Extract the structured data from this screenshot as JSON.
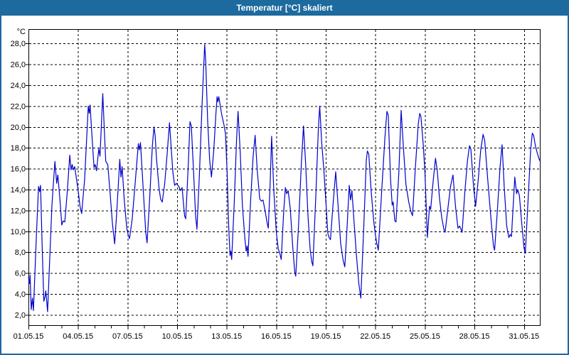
{
  "window": {
    "title": "Temperatur [°C] skaliert",
    "titlebar_color": "#1d6a9e",
    "border_color": "#2066a2",
    "background": "#ffffff"
  },
  "chart_data": {
    "type": "line",
    "title": "Temperatur [°C] skaliert",
    "ylabel": "°C",
    "grid": true,
    "grid_color": "#000000",
    "grid_style": "dashed",
    "line_color": "#0000cc",
    "plot_background": "#ffffff",
    "x_axis": {
      "unit": "date",
      "range_days": [
        1,
        32
      ],
      "major_ticks": [
        {
          "day": 1,
          "label": "01.05.15"
        },
        {
          "day": 4,
          "label": "04.05.15"
        },
        {
          "day": 7,
          "label": "07.05.15"
        },
        {
          "day": 10,
          "label": "10.05.15"
        },
        {
          "day": 13,
          "label": "13.05.15"
        },
        {
          "day": 16,
          "label": "16.05.15"
        },
        {
          "day": 19,
          "label": "19.05.15"
        },
        {
          "day": 22,
          "label": "22.05.15"
        },
        {
          "day": 25,
          "label": "25.05.15"
        },
        {
          "day": 28,
          "label": "28.05.15"
        },
        {
          "day": 31,
          "label": "31.05.15"
        }
      ],
      "minor_tick_every_days": 1
    },
    "y_axis": {
      "range": [
        0.9,
        29.4
      ],
      "ticks": [
        2,
        4,
        6,
        8,
        10,
        12,
        14,
        16,
        18,
        20,
        22,
        24,
        26,
        28
      ],
      "labels": [
        "2,0",
        "4,0",
        "6,0",
        "8,0",
        "10,0",
        "12,0",
        "14,0",
        "16,0",
        "18,0",
        "20,0",
        "22,0",
        "24,0",
        "26,0",
        "28,0"
      ],
      "unit_label": "°C"
    },
    "series": [
      {
        "name": "Temperatur",
        "color": "#0000cc",
        "points": [
          [
            1.0,
            5.6
          ],
          [
            1.06,
            5.0
          ],
          [
            1.1,
            5.8
          ],
          [
            1.17,
            2.5
          ],
          [
            1.24,
            3.6
          ],
          [
            1.3,
            2.4
          ],
          [
            1.38,
            5.5
          ],
          [
            1.48,
            9.5
          ],
          [
            1.61,
            14.3
          ],
          [
            1.68,
            13.8
          ],
          [
            1.73,
            14.4
          ],
          [
            1.83,
            8.5
          ],
          [
            1.93,
            3.3
          ],
          [
            2.0,
            3.7
          ],
          [
            2.05,
            4.3
          ],
          [
            2.16,
            2.3
          ],
          [
            2.28,
            7.0
          ],
          [
            2.42,
            12.5
          ],
          [
            2.6,
            16.7
          ],
          [
            2.71,
            14.6
          ],
          [
            2.78,
            15.4
          ],
          [
            2.9,
            13.2
          ],
          [
            3.02,
            10.6
          ],
          [
            3.1,
            11.0
          ],
          [
            3.2,
            10.9
          ],
          [
            3.35,
            13.8
          ],
          [
            3.5,
            17.3
          ],
          [
            3.58,
            15.9
          ],
          [
            3.65,
            16.4
          ],
          [
            3.72,
            15.9
          ],
          [
            3.8,
            16.2
          ],
          [
            4.0,
            14.0
          ],
          [
            4.12,
            12.4
          ],
          [
            4.22,
            11.7
          ],
          [
            4.4,
            15.0
          ],
          [
            4.62,
            22.0
          ],
          [
            4.68,
            21.3
          ],
          [
            4.73,
            22.1
          ],
          [
            4.87,
            18.5
          ],
          [
            4.97,
            16.1
          ],
          [
            5.04,
            16.4
          ],
          [
            5.12,
            15.8
          ],
          [
            5.26,
            17.9
          ],
          [
            5.33,
            17.2
          ],
          [
            5.5,
            23.2
          ],
          [
            5.6,
            19.5
          ],
          [
            5.68,
            16.7
          ],
          [
            5.8,
            16.4
          ],
          [
            5.95,
            13.5
          ],
          [
            6.08,
            10.8
          ],
          [
            6.22,
            8.8
          ],
          [
            6.35,
            12.0
          ],
          [
            6.53,
            16.9
          ],
          [
            6.6,
            15.2
          ],
          [
            6.67,
            16.2
          ],
          [
            6.8,
            13.0
          ],
          [
            6.95,
            10.3
          ],
          [
            7.05,
            9.6
          ],
          [
            7.12,
            9.3
          ],
          [
            7.28,
            11.2
          ],
          [
            7.48,
            15.0
          ],
          [
            7.65,
            18.4
          ],
          [
            7.71,
            17.8
          ],
          [
            7.78,
            18.5
          ],
          [
            7.95,
            14.0
          ],
          [
            8.1,
            9.9
          ],
          [
            8.18,
            8.9
          ],
          [
            8.35,
            13.5
          ],
          [
            8.5,
            18.2
          ],
          [
            8.6,
            20.0
          ],
          [
            8.67,
            19.2
          ],
          [
            8.75,
            17.0
          ],
          [
            8.9,
            14.2
          ],
          [
            9.0,
            13.1
          ],
          [
            9.1,
            12.8
          ],
          [
            9.25,
            14.6
          ],
          [
            9.4,
            17.5
          ],
          [
            9.54,
            20.4
          ],
          [
            9.65,
            17.8
          ],
          [
            9.74,
            15.7
          ],
          [
            9.85,
            14.4
          ],
          [
            9.95,
            14.6
          ],
          [
            10.1,
            14.3
          ],
          [
            10.2,
            13.9
          ],
          [
            10.3,
            14.2
          ],
          [
            10.45,
            11.5
          ],
          [
            10.52,
            11.2
          ],
          [
            10.68,
            16.5
          ],
          [
            10.78,
            20.5
          ],
          [
            10.86,
            20.1
          ],
          [
            11.0,
            15.5
          ],
          [
            11.12,
            11.5
          ],
          [
            11.2,
            10.2
          ],
          [
            11.35,
            15.5
          ],
          [
            11.5,
            21.8
          ],
          [
            11.6,
            25.5
          ],
          [
            11.67,
            27.9
          ],
          [
            11.73,
            26.3
          ],
          [
            11.85,
            20.5
          ],
          [
            11.97,
            16.8
          ],
          [
            12.08,
            15.2
          ],
          [
            12.22,
            17.8
          ],
          [
            12.35,
            21.3
          ],
          [
            12.42,
            22.9
          ],
          [
            12.47,
            22.4
          ],
          [
            12.52,
            22.9
          ],
          [
            12.7,
            21.2
          ],
          [
            12.85,
            20.1
          ],
          [
            12.93,
            19.3
          ],
          [
            13.03,
            15.5
          ],
          [
            13.12,
            10.5
          ],
          [
            13.2,
            7.7
          ],
          [
            13.25,
            8.1
          ],
          [
            13.3,
            7.3
          ],
          [
            13.45,
            12.5
          ],
          [
            13.6,
            18.8
          ],
          [
            13.69,
            21.5
          ],
          [
            13.82,
            17.5
          ],
          [
            13.95,
            12.5
          ],
          [
            14.1,
            9.3
          ],
          [
            14.18,
            8.1
          ],
          [
            14.24,
            8.6
          ],
          [
            14.29,
            7.6
          ],
          [
            14.45,
            13.0
          ],
          [
            14.6,
            17.2
          ],
          [
            14.72,
            19.2
          ],
          [
            14.85,
            15.8
          ],
          [
            15.0,
            13.1
          ],
          [
            15.1,
            12.9
          ],
          [
            15.2,
            13.0
          ],
          [
            15.32,
            12.0
          ],
          [
            15.45,
            10.8
          ],
          [
            15.52,
            10.3
          ],
          [
            15.63,
            14.5
          ],
          [
            15.72,
            19.1
          ],
          [
            15.85,
            14.0
          ],
          [
            16.0,
            10.0
          ],
          [
            16.12,
            8.3
          ],
          [
            16.2,
            8.0
          ],
          [
            16.3,
            7.3
          ],
          [
            16.45,
            11.8
          ],
          [
            16.55,
            14.2
          ],
          [
            16.63,
            13.6
          ],
          [
            16.72,
            13.9
          ],
          [
            16.85,
            12.2
          ],
          [
            17.0,
            8.5
          ],
          [
            17.12,
            6.1
          ],
          [
            17.18,
            5.7
          ],
          [
            17.35,
            10.5
          ],
          [
            17.52,
            16.5
          ],
          [
            17.65,
            20.1
          ],
          [
            17.78,
            16.5
          ],
          [
            17.92,
            11.5
          ],
          [
            18.05,
            8.3
          ],
          [
            18.15,
            7.1
          ],
          [
            18.22,
            6.7
          ],
          [
            18.4,
            13.5
          ],
          [
            18.55,
            19.8
          ],
          [
            18.63,
            22.0
          ],
          [
            18.75,
            18.5
          ],
          [
            18.88,
            15.9
          ],
          [
            19.02,
            12.5
          ],
          [
            19.12,
            9.8
          ],
          [
            19.2,
            9.4
          ],
          [
            19.28,
            9.2
          ],
          [
            19.45,
            12.8
          ],
          [
            19.6,
            15.7
          ],
          [
            19.75,
            12.3
          ],
          [
            19.9,
            8.8
          ],
          [
            20.05,
            7.2
          ],
          [
            20.15,
            6.6
          ],
          [
            20.3,
            10.8
          ],
          [
            20.42,
            14.4
          ],
          [
            20.5,
            13.0
          ],
          [
            20.58,
            13.9
          ],
          [
            20.7,
            11.2
          ],
          [
            20.85,
            7.8
          ],
          [
            21.0,
            5.0
          ],
          [
            21.12,
            3.6
          ],
          [
            21.3,
            10.5
          ],
          [
            21.45,
            16.8
          ],
          [
            21.52,
            17.7
          ],
          [
            21.6,
            17.4
          ],
          [
            21.75,
            13.8
          ],
          [
            21.9,
            11.0
          ],
          [
            22.0,
            9.7
          ],
          [
            22.08,
            8.9
          ],
          [
            22.18,
            8.2
          ],
          [
            22.38,
            13.8
          ],
          [
            22.58,
            19.0
          ],
          [
            22.7,
            21.5
          ],
          [
            22.78,
            21.1
          ],
          [
            22.92,
            15.0
          ],
          [
            23.02,
            12.5
          ],
          [
            23.08,
            12.8
          ],
          [
            23.18,
            11.0
          ],
          [
            23.25,
            10.9
          ],
          [
            23.42,
            15.5
          ],
          [
            23.56,
            21.6
          ],
          [
            23.7,
            18.0
          ],
          [
            23.85,
            14.5
          ],
          [
            24.02,
            12.8
          ],
          [
            24.15,
            11.9
          ],
          [
            24.25,
            11.5
          ],
          [
            24.42,
            16.0
          ],
          [
            24.6,
            20.3
          ],
          [
            24.69,
            21.3
          ],
          [
            24.76,
            21.0
          ],
          [
            24.9,
            18.3
          ],
          [
            25.0,
            15.7
          ],
          [
            25.08,
            12.3
          ],
          [
            25.15,
            9.4
          ],
          [
            25.28,
            12.4
          ],
          [
            25.35,
            12.1
          ],
          [
            25.5,
            14.8
          ],
          [
            25.64,
            17.0
          ],
          [
            25.75,
            15.8
          ],
          [
            25.88,
            13.2
          ],
          [
            26.02,
            11.3
          ],
          [
            26.15,
            10.2
          ],
          [
            26.22,
            9.9
          ],
          [
            26.4,
            12.3
          ],
          [
            26.55,
            14.3
          ],
          [
            26.7,
            15.4
          ],
          [
            26.85,
            12.4
          ],
          [
            27.0,
            10.3
          ],
          [
            27.1,
            10.5
          ],
          [
            27.18,
            10.2
          ],
          [
            27.25,
            9.9
          ],
          [
            27.42,
            13.8
          ],
          [
            27.58,
            16.8
          ],
          [
            27.7,
            18.2
          ],
          [
            27.78,
            17.9
          ],
          [
            27.95,
            14.2
          ],
          [
            28.07,
            12.4
          ],
          [
            28.22,
            14.8
          ],
          [
            28.38,
            17.8
          ],
          [
            28.52,
            19.3
          ],
          [
            28.62,
            18.7
          ],
          [
            28.8,
            15.0
          ],
          [
            29.0,
            11.2
          ],
          [
            29.15,
            8.6
          ],
          [
            29.22,
            8.2
          ],
          [
            29.4,
            12.3
          ],
          [
            29.55,
            16.2
          ],
          [
            29.67,
            18.3
          ],
          [
            29.8,
            14.3
          ],
          [
            29.95,
            10.5
          ],
          [
            30.08,
            9.4
          ],
          [
            30.16,
            9.7
          ],
          [
            30.24,
            9.5
          ],
          [
            30.44,
            15.2
          ],
          [
            30.55,
            13.6
          ],
          [
            30.62,
            14.0
          ],
          [
            30.72,
            13.4
          ],
          [
            30.86,
            10.8
          ],
          [
            31.0,
            8.4
          ],
          [
            31.08,
            7.9
          ],
          [
            31.25,
            13.2
          ],
          [
            31.4,
            17.8
          ],
          [
            31.5,
            19.4
          ],
          [
            31.58,
            19.2
          ],
          [
            31.7,
            18.1
          ],
          [
            31.82,
            17.4
          ],
          [
            31.92,
            16.9
          ],
          [
            31.98,
            16.7
          ]
        ]
      }
    ]
  }
}
